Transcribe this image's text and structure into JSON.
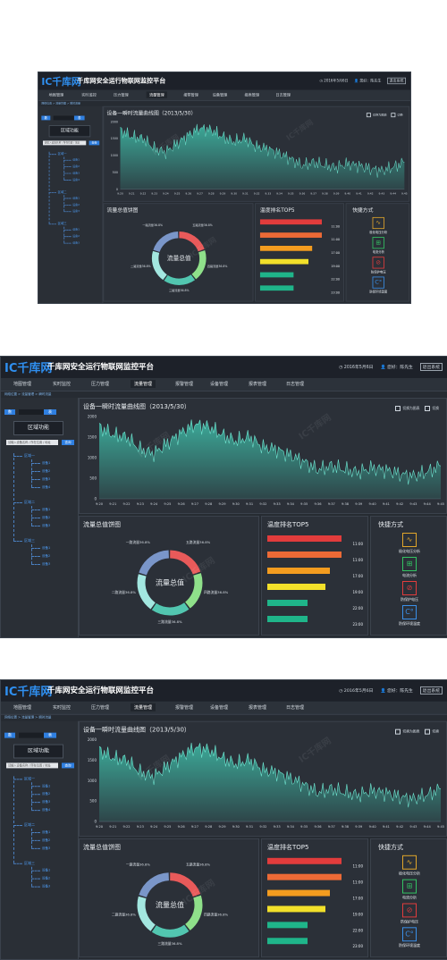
{
  "header": {
    "logo": "IC千库网",
    "title": "千库网安全运行物联网监控平台",
    "date": "2016年5月6日",
    "user_prefix": "您好：",
    "user": "陈先生",
    "logout": "退出系统"
  },
  "nav": {
    "items": [
      "地图管理",
      "实时监控",
      "压力管理",
      "流量管理",
      "报警管理",
      "设备管理",
      "报表管理",
      "日志管理"
    ],
    "active_index": 3
  },
  "breadcrumb": "网络位置 > 流量管理 > 瞬时流量",
  "sidebar": {
    "toggle_left": "数",
    "toggle_right": "表",
    "area_button": "区域功能",
    "search_placeholder": "请输入设备名称 / 所在位置 / 地址",
    "query_button": "查询",
    "tree": [
      {
        "label": "区域一",
        "children": [
          "设备1",
          "设备2",
          "设备3",
          "设备4"
        ]
      },
      {
        "label": "区域二",
        "children": [
          "设备1",
          "设备2",
          "设备3"
        ]
      },
      {
        "label": "区域三",
        "children": [
          "设备1",
          "设备2",
          "设备3"
        ]
      }
    ]
  },
  "line_chart": {
    "title": "设备一瞬时流量曲线图（2013/5/30）",
    "legend": [
      "切换为图表",
      "切换"
    ]
  },
  "pie": {
    "title": "流量总值饼图",
    "center_label": "流量总值",
    "labels": [
      "一路流量36.8%",
      "五路流量36.8%",
      "二路流量36.8%",
      "四路流量36.8%",
      "三路流量36.8%"
    ]
  },
  "ranking": {
    "title": "温度排名TOP5",
    "items": [
      {
        "time": "11:00",
        "color": "#e23c3c",
        "fraction": 0.92
      },
      {
        "time": "11:00",
        "color": "#ec6a36",
        "fraction": 0.92
      },
      {
        "time": "17:00",
        "color": "#f39c1f",
        "fraction": 0.78
      },
      {
        "time": "19:00",
        "color": "#f2e02a",
        "fraction": 0.72
      },
      {
        "time": "22:00",
        "color": "#1fb58a",
        "fraction": 0.5
      },
      {
        "time": "23:00",
        "color": "#1fb58a",
        "fraction": 0.5
      }
    ]
  },
  "quick": {
    "title": "快捷方式",
    "items": [
      {
        "label": "极化电压分析",
        "icon": "waveform-icon",
        "color": "#e0a52a"
      },
      {
        "label": "电流分析",
        "icon": "meter-icon",
        "color": "#33c463"
      },
      {
        "label": "防保护电压",
        "icon": "shield-icon",
        "color": "#e23c3c"
      },
      {
        "label": "防保环境温度",
        "icon": "temperature-icon",
        "color": "#3a8fe8"
      }
    ]
  },
  "chart_data": {
    "type": "area",
    "title": "设备一瞬时流量曲线图（2013/5/30）",
    "x": [
      "9:20",
      "9:21",
      "9:22",
      "9:23",
      "9:24",
      "9:25",
      "9:26",
      "9:27",
      "9:28",
      "9:29",
      "9:30",
      "9:31",
      "9:32",
      "9:33",
      "9:34",
      "9:35",
      "9:36",
      "9:37",
      "9:38",
      "9:39",
      "9:40",
      "9:41",
      "9:42",
      "9:43",
      "9:44",
      "9:45"
    ],
    "values": [
      1750,
      1550,
      1500,
      1200,
      1100,
      1350,
      1600,
      1800,
      1750,
      1550,
      1400,
      1500,
      1250,
      1200,
      1050,
      900,
      700,
      800,
      700,
      650,
      750,
      700,
      600,
      550,
      650,
      800
    ],
    "yticks": [
      0,
      500,
      1000,
      1500,
      2000
    ],
    "ylim": [
      0,
      2000
    ],
    "color": "#3fbfaa",
    "grid": false
  },
  "pie_data": {
    "type": "pie",
    "segments": [
      {
        "value": 36.8,
        "color": "#e85a5a"
      },
      {
        "value": 36.8,
        "color": "#8fe08a"
      },
      {
        "value": 36.8,
        "color": "#52c6b0"
      },
      {
        "value": 36.8,
        "color": "#a3e7e0"
      },
      {
        "value": 36.8,
        "color": "#7a96c9"
      }
    ]
  }
}
